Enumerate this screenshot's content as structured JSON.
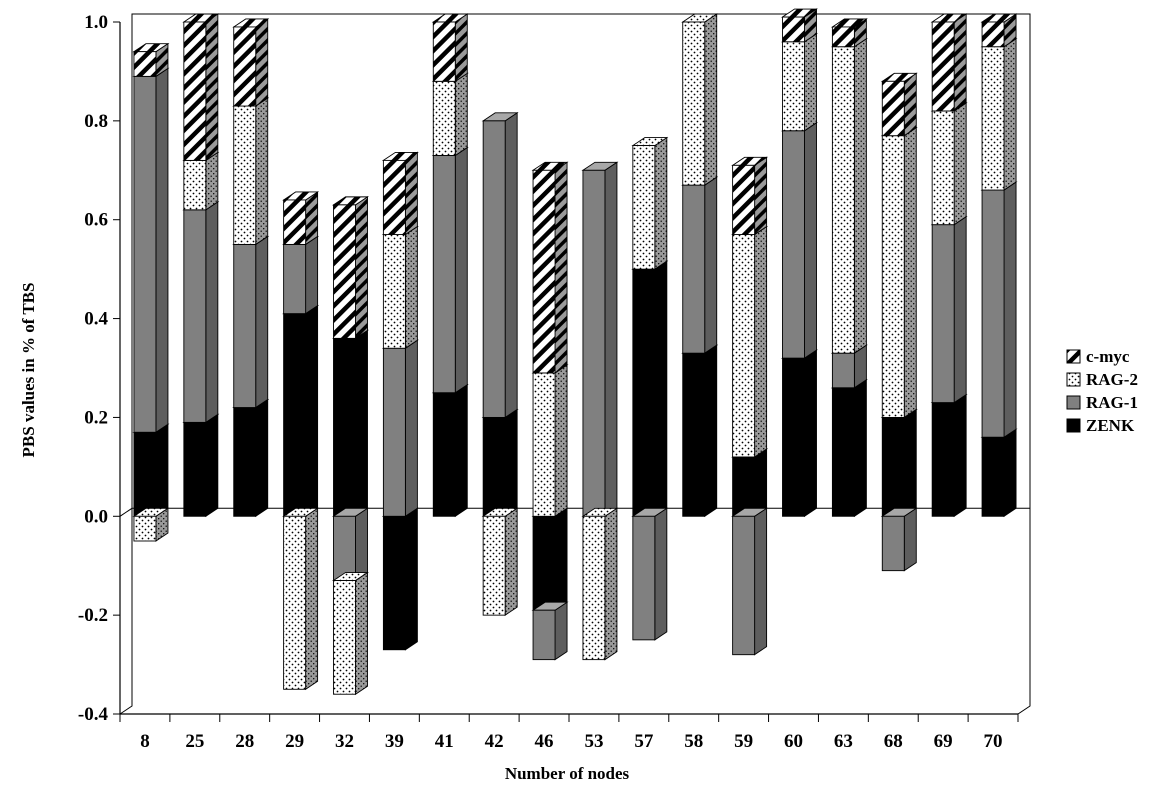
{
  "chart_data": {
    "type": "bar",
    "stacked": true,
    "style": "3d",
    "xlabel": "Number of nodes",
    "ylabel": "PBS values in % of TBS",
    "ylim": [
      -0.4,
      1.0
    ],
    "yticks": [
      "-0.4",
      "-0.2",
      "0.0",
      "0.2",
      "0.4",
      "0.6",
      "0.8",
      "1.0"
    ],
    "ytick_values": [
      -0.4,
      -0.2,
      0.0,
      0.2,
      0.4,
      0.6,
      0.8,
      1.0
    ],
    "categories": [
      "8",
      "25",
      "28",
      "29",
      "32",
      "39",
      "41",
      "42",
      "46",
      "53",
      "57",
      "58",
      "59",
      "60",
      "63",
      "68",
      "69",
      "70"
    ],
    "legend_position": "right",
    "series": [
      {
        "name": "ZENK",
        "color": "#000000",
        "pattern": "solid",
        "values": [
          0.17,
          0.19,
          0.22,
          0.41,
          0.36,
          -0.27,
          0.25,
          0.2,
          -0.19,
          0.0,
          0.5,
          0.33,
          0.12,
          0.32,
          0.26,
          0.2,
          0.23,
          0.16
        ]
      },
      {
        "name": "RAG-1",
        "color": "#808080",
        "pattern": "solid",
        "values": [
          0.72,
          0.43,
          0.33,
          0.14,
          -0.13,
          0.34,
          0.48,
          0.6,
          -0.1,
          0.7,
          -0.25,
          0.34,
          -0.28,
          0.46,
          0.07,
          -0.11,
          0.36,
          0.5
        ]
      },
      {
        "name": "RAG-2",
        "color": "#ffffff",
        "pattern": "dotted",
        "values": [
          -0.05,
          0.1,
          0.28,
          -0.35,
          -0.23,
          0.23,
          0.15,
          -0.2,
          0.29,
          -0.29,
          0.25,
          0.33,
          0.45,
          0.18,
          0.62,
          0.57,
          0.23,
          0.29
        ]
      },
      {
        "name": "c-myc",
        "color": "#ffffff",
        "pattern": "hatched",
        "values": [
          0.05,
          0.28,
          0.16,
          0.09,
          0.27,
          0.15,
          0.12,
          0.0,
          0.41,
          0.0,
          0.0,
          0.0,
          0.14,
          0.05,
          0.04,
          0.11,
          0.18,
          0.05
        ]
      }
    ]
  }
}
